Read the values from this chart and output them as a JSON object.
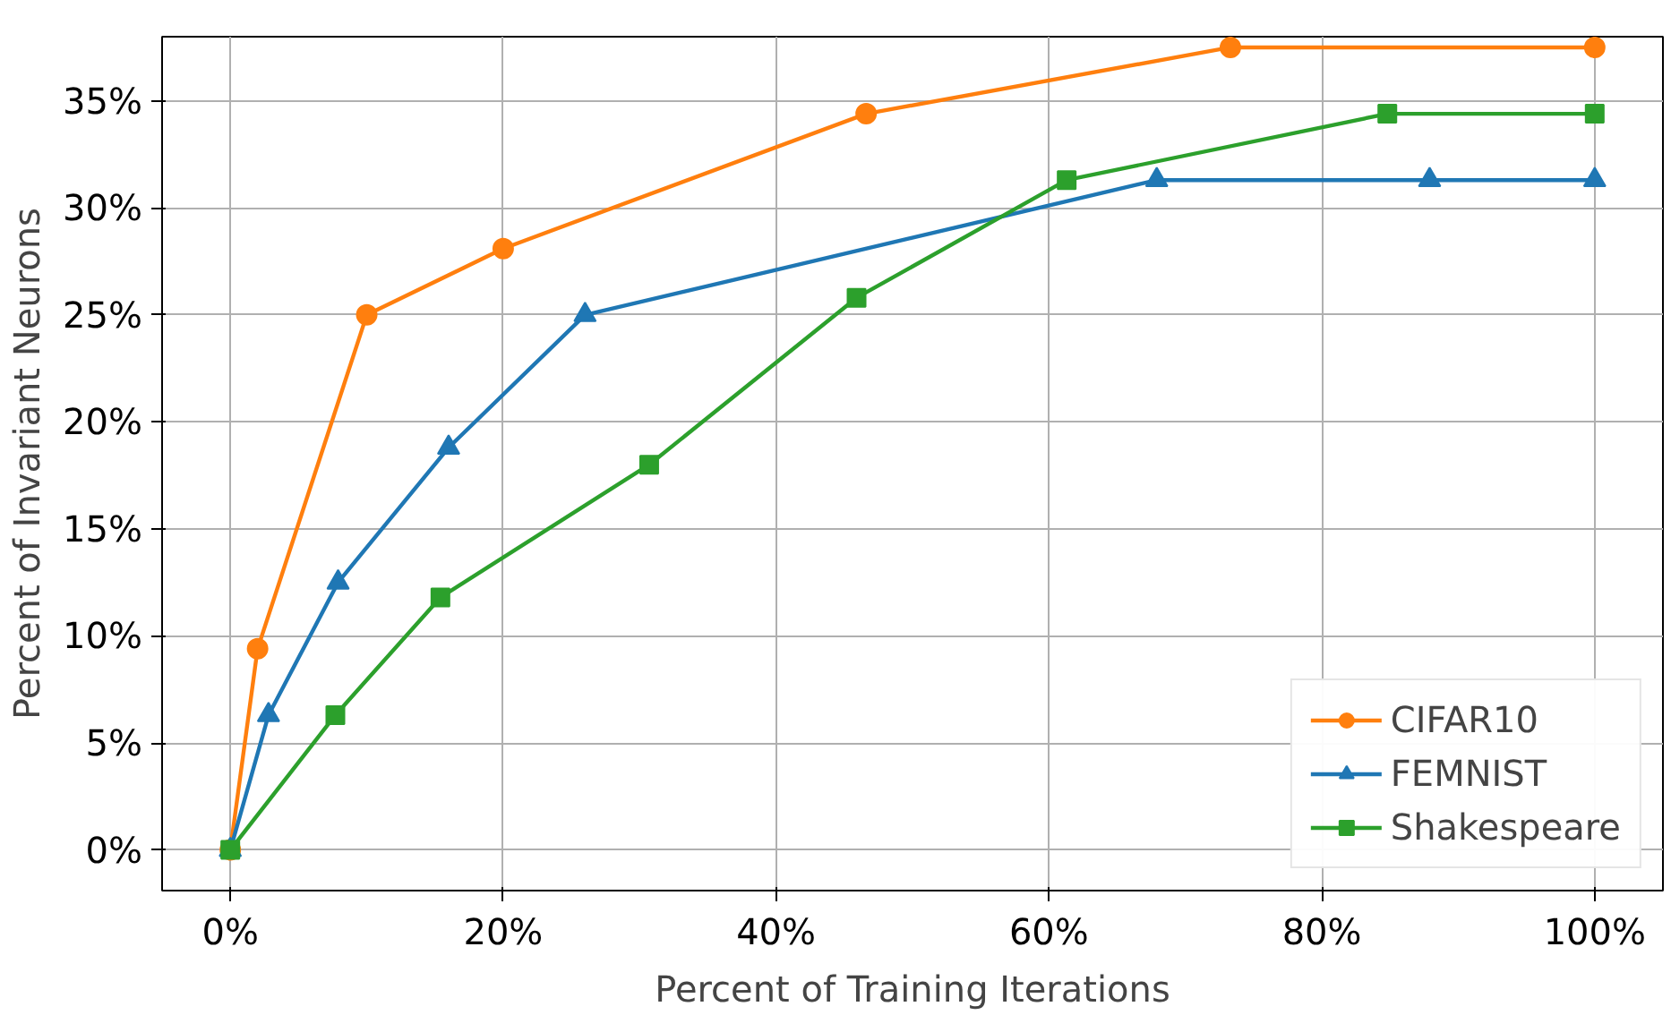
{
  "chart_data": {
    "type": "line",
    "xlabel": "Percent of Training Iterations",
    "ylabel": "Percent of Invariant Neurons",
    "xlim": [
      -5,
      105
    ],
    "ylim": [
      -1.9,
      38
    ],
    "xticks": [
      {
        "value": 0,
        "label": "0%"
      },
      {
        "value": 20,
        "label": "20%"
      },
      {
        "value": 40,
        "label": "40%"
      },
      {
        "value": 60,
        "label": "60%"
      },
      {
        "value": 80,
        "label": "80%"
      },
      {
        "value": 100,
        "label": "100%"
      }
    ],
    "yticks": [
      {
        "value": 0,
        "label": "0%"
      },
      {
        "value": 5,
        "label": "5%"
      },
      {
        "value": 10,
        "label": "10%"
      },
      {
        "value": 15,
        "label": "15%"
      },
      {
        "value": 20,
        "label": "20%"
      },
      {
        "value": 25,
        "label": "25%"
      },
      {
        "value": 30,
        "label": "30%"
      },
      {
        "value": 35,
        "label": "35%"
      }
    ],
    "grid": true,
    "legend": "bottom right",
    "line_style": "solid",
    "series": [
      {
        "name": "CIFAR10",
        "color": "#ff7f0e",
        "marker": "circle",
        "x": [
          0,
          2,
          10,
          20,
          46.6,
          73.3,
          100
        ],
        "values": [
          0,
          9.4,
          25,
          28.1,
          34.4,
          37.5,
          37.5
        ]
      },
      {
        "name": "FEMNIST",
        "color": "#1f77b4",
        "marker": "triangle",
        "x": [
          0,
          2.8,
          7.9,
          16,
          26,
          67.9,
          87.9,
          100
        ],
        "values": [
          0,
          6.3,
          12.5,
          18.8,
          25,
          31.3,
          31.3,
          31.3
        ]
      },
      {
        "name": "Shakespeare",
        "color": "#2ca02c",
        "marker": "square",
        "x": [
          0,
          7.7,
          15.4,
          30.7,
          45.9,
          61.3,
          84.8,
          100
        ],
        "values": [
          0,
          6.3,
          11.8,
          18,
          25.8,
          31.3,
          34.4,
          34.4
        ]
      }
    ]
  }
}
